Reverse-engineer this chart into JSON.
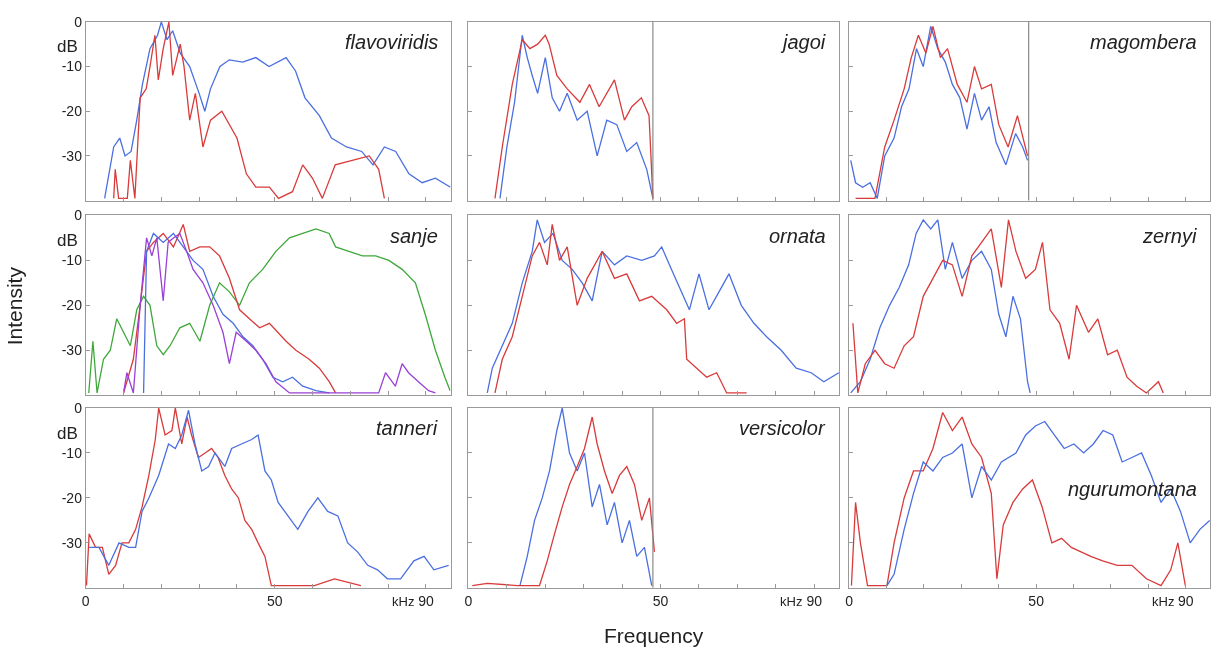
{
  "chart_data": [
    {
      "type": "line",
      "title": "flavoviridis",
      "ylabel": "dB",
      "xlim": [
        0,
        96.5
      ],
      "ylim": [
        -40,
        0
      ],
      "tick_labels": "y",
      "xticks": [
        0,
        {
          "value": 10,
          "label": null
        },
        {
          "value": 20,
          "label": null
        },
        {
          "value": 30,
          "label": null
        },
        {
          "value": 40,
          "label": null
        },
        50,
        {
          "value": 60,
          "label": null
        },
        {
          "value": 70,
          "label": null
        },
        {
          "value": 80,
          "label": null
        },
        90
      ],
      "yticks": [
        0,
        -10,
        -20,
        -30
      ],
      "series": [
        {
          "color": "#4a6fe0",
          "x": [
            5,
            7.4,
            9,
            10.4,
            12,
            13.5,
            15,
            17,
            19,
            20,
            21.5,
            23,
            25,
            27.5,
            30,
            31.5,
            33,
            35.5,
            38,
            41.5,
            45,
            48.5,
            53,
            55.5,
            58,
            61.8,
            65,
            69,
            73,
            76,
            79,
            82,
            85.5,
            89,
            92.5,
            96.5
          ],
          "values": [
            -39.5,
            -28,
            -26,
            -30,
            -29,
            -22,
            -14,
            -6,
            -3,
            0,
            -4,
            -2,
            -7,
            -10,
            -16,
            -20,
            -15,
            -10,
            -8.5,
            -9,
            -8,
            -10,
            -8,
            -11,
            -17,
            -21,
            -26,
            -28,
            -29,
            -32,
            -28,
            -29,
            -34,
            -36,
            -35,
            -37
          ]
        },
        {
          "color": "#d93a3a",
          "x": [
            7.4,
            7.8,
            8.7,
            11,
            11.8,
            13,
            14.4,
            16,
            17,
            18.3,
            19.2,
            20.5,
            22,
            23,
            25,
            26,
            27.5,
            29,
            31,
            33,
            36,
            40,
            42.5,
            45,
            48.6,
            51,
            54.7,
            57.4,
            60,
            62.6,
            66,
            70.5,
            75,
            77.5,
            79
          ],
          "values": [
            -39.5,
            -33,
            -39.5,
            -39.5,
            -31,
            -39.5,
            -17,
            -15,
            -10,
            -3,
            -13,
            -6,
            0,
            -12,
            -5,
            -10,
            -22,
            -16,
            -28,
            -22,
            -20,
            -26,
            -34,
            -37,
            -37,
            -39.5,
            -38,
            -32,
            -35,
            -39.5,
            -32,
            -31,
            -30,
            -33,
            -39.5
          ]
        }
      ]
    },
    {
      "type": "line",
      "title": "jagoi",
      "xlim": [
        0,
        96.5
      ],
      "ylim": [
        -40,
        0
      ],
      "tick_labels": false,
      "xticks": [
        0,
        {
          "value": 10,
          "label": null
        },
        {
          "value": 20,
          "label": null
        },
        {
          "value": 30,
          "label": null
        },
        {
          "value": 40,
          "label": null
        },
        50,
        {
          "value": 60,
          "label": null
        },
        {
          "value": 70,
          "label": null
        },
        {
          "value": 80,
          "label": null
        },
        90
      ],
      "yticks": [
        0,
        -10,
        -20,
        -30
      ],
      "ref_lines": [
        {
          "axis": "x",
          "value": 48,
          "color": "#8a8a8a"
        }
      ],
      "series": [
        {
          "color": "#4a6fe0",
          "x": [
            8.2,
            10,
            12,
            14,
            15.3,
            16.6,
            18,
            20,
            21.8,
            23.7,
            25.7,
            28.3,
            30.9,
            33.5,
            36,
            38.6,
            41.2,
            43.8,
            46.4,
            48
          ],
          "values": [
            -39.5,
            -28,
            -18,
            -3,
            -8,
            -12,
            -16,
            -8,
            -17,
            -20,
            -16,
            -22,
            -20,
            -30,
            -22,
            -23,
            -29,
            -27,
            -33,
            -39.5
          ]
        },
        {
          "color": "#d93a3a",
          "x": [
            6.9,
            8.8,
            11.4,
            14,
            16,
            18,
            20,
            21,
            23,
            25.7,
            29,
            31.5,
            34,
            38,
            40.6,
            42.5,
            45,
            47,
            48
          ],
          "values": [
            -39.5,
            -28,
            -14,
            -4,
            -6,
            -5,
            -3,
            -5,
            -12,
            -15,
            -18,
            -14,
            -19,
            -13,
            -22,
            -19,
            -17,
            -21,
            -39.5
          ]
        }
      ]
    },
    {
      "type": "line",
      "title": "magombera",
      "xlim": [
        0,
        96.5
      ],
      "ylim": [
        -40,
        0
      ],
      "tick_labels": false,
      "xticks": [
        0,
        {
          "value": 10,
          "label": null
        },
        {
          "value": 20,
          "label": null
        },
        {
          "value": 30,
          "label": null
        },
        {
          "value": 40,
          "label": null
        },
        50,
        {
          "value": 60,
          "label": null
        },
        {
          "value": 70,
          "label": null
        },
        {
          "value": 80,
          "label": null
        },
        90
      ],
      "yticks": [
        0,
        -10,
        -20,
        -30
      ],
      "ref_lines": [
        {
          "axis": "x",
          "value": 48,
          "color": "#8a8a8a"
        }
      ],
      "series": [
        {
          "color": "#4a6fe0",
          "x": [
            0.4,
            1.7,
            3.6,
            5.6,
            7.5,
            9.5,
            12,
            14,
            16,
            18,
            19.8,
            21.8,
            23.7,
            25.7,
            27.6,
            29.6,
            31.5,
            33.5,
            35.4,
            37.4,
            39.3,
            41.9,
            44.5,
            46.4,
            47.7
          ],
          "values": [
            -31,
            -36,
            -37,
            -36,
            -39.5,
            -30,
            -26,
            -19,
            -15,
            -6,
            -10,
            -1,
            -6,
            -9,
            -14,
            -17,
            -24,
            -16,
            -22,
            -19,
            -27,
            -32,
            -25,
            -28,
            -31
          ]
        },
        {
          "color": "#d93a3a",
          "x": [
            1.7,
            6.9,
            9.5,
            12,
            14.7,
            16.6,
            18.5,
            20.5,
            22.4,
            24.4,
            26.3,
            28.9,
            31.5,
            33.5,
            35.4,
            38,
            40,
            42.5,
            45,
            47.7
          ],
          "values": [
            -39.5,
            -39.5,
            -28,
            -22,
            -15,
            -8,
            -3,
            -7,
            -1,
            -8,
            -6,
            -14,
            -18,
            -10,
            -15,
            -14,
            -23,
            -28,
            -21,
            -30
          ]
        }
      ]
    },
    {
      "type": "line",
      "title": "sanje",
      "ylabel": "dB",
      "annotations": [
        "Intensity"
      ],
      "xlim": [
        0,
        96.5
      ],
      "ylim": [
        -40,
        0
      ],
      "tick_labels": "y",
      "xticks": [
        0,
        {
          "value": 10,
          "label": null
        },
        {
          "value": 20,
          "label": null
        },
        {
          "value": 30,
          "label": null
        },
        {
          "value": 40,
          "label": null
        },
        50,
        {
          "value": 60,
          "label": null
        },
        {
          "value": 70,
          "label": null
        },
        {
          "value": 80,
          "label": null
        },
        90
      ],
      "yticks": [
        0,
        -10,
        -20,
        -30
      ],
      "series": [
        {
          "color": "#3fa83a",
          "x": [
            0.8,
            1.9,
            3,
            4.7,
            6.5,
            8.2,
            10,
            11.8,
            13.5,
            15.3,
            17,
            18.8,
            20.5,
            22.3,
            24.9,
            27.5,
            30.2,
            32.8,
            35.4,
            38,
            40.7,
            43.3,
            46.8,
            50.3,
            53.9,
            57.4,
            60.9,
            64.4,
            66.1,
            69.6,
            73.2,
            76.7,
            80.2,
            83.7,
            87.2,
            89.8,
            92.5,
            95,
            96.4
          ],
          "values": [
            -39.5,
            -28,
            -39.5,
            -32,
            -30,
            -23,
            -26,
            -29,
            -21,
            -18,
            -20,
            -29,
            -31,
            -29,
            -25,
            -24,
            -28,
            -20,
            -15,
            -17,
            -20,
            -15,
            -12,
            -8,
            -5,
            -4,
            -3,
            -4,
            -7,
            -8,
            -9,
            -9,
            -10,
            -12,
            -15,
            -22,
            -30,
            -36,
            -39
          ]
        },
        {
          "color": "#d93a3a",
          "x": [
            10,
            12.6,
            14.4,
            16.1,
            17.9,
            20.5,
            23.2,
            25.8,
            27.5,
            30.2,
            32.8,
            35.4,
            38,
            40.7,
            43.3,
            46,
            48.6,
            53,
            55.6,
            59.1,
            61.8,
            64.4,
            66.1
          ],
          "values": [
            -39.5,
            -32,
            -20,
            -8,
            -6,
            -4,
            -7,
            -2,
            -8,
            -7,
            -7,
            -9,
            -14,
            -21,
            -23,
            -25,
            -24,
            -28,
            -30,
            -32,
            -34,
            -37,
            -39.5
          ]
        },
        {
          "color": "#4a6fe0",
          "x": [
            15.3,
            16.1,
            17.9,
            20.5,
            23.2,
            25.8,
            28.4,
            31,
            33.7,
            36.3,
            39,
            41.6,
            44.2,
            46.8,
            49.5,
            52.1,
            54.7,
            57.4,
            60.9,
            64.4
          ],
          "values": [
            -39.5,
            -8,
            -4,
            -6,
            -4,
            -7,
            -10,
            -12,
            -18,
            -22,
            -24,
            -27,
            -29,
            -32,
            -36,
            -37,
            -36,
            -38,
            -39,
            -39.5
          ]
        },
        {
          "color": "#9b3fd6",
          "x": [
            10,
            10.9,
            12.6,
            14.4,
            16.1,
            17.5,
            18.8,
            20.5,
            21.8,
            23.2,
            24.9,
            26.7,
            28.4,
            31,
            33.7,
            36.3,
            38,
            39.8,
            42.5,
            45,
            47.7,
            50.3,
            53.9,
            77.5,
            79.3,
            81.9,
            83.7,
            85.4,
            88,
            90.7,
            92.5
          ],
          "values": [
            -39.5,
            -35,
            -39.5,
            -20,
            -5,
            -9,
            -5,
            -19,
            -6,
            -5,
            -4,
            -8,
            -12,
            -15,
            -20,
            -26,
            -33,
            -26,
            -28,
            -30,
            -33,
            -37,
            -39.5,
            -39.5,
            -35,
            -38,
            -33,
            -35,
            -37,
            -39,
            -39.5
          ]
        }
      ]
    },
    {
      "type": "line",
      "title": "ornata",
      "xlim": [
        0,
        96.5
      ],
      "ylim": [
        -40,
        0
      ],
      "tick_labels": false,
      "xticks": [
        0,
        {
          "value": 10,
          "label": null
        },
        {
          "value": 20,
          "label": null
        },
        {
          "value": 30,
          "label": null
        },
        {
          "value": 40,
          "label": null
        },
        50,
        {
          "value": 60,
          "label": null
        },
        {
          "value": 70,
          "label": null
        },
        {
          "value": 80,
          "label": null
        },
        90
      ],
      "yticks": [
        0,
        -10,
        -20,
        -30
      ],
      "series": [
        {
          "color": "#4a6fe0",
          "x": [
            4.9,
            6.2,
            8.8,
            11.4,
            14,
            16.6,
            17.9,
            19.8,
            22,
            24.4,
            27,
            29.6,
            32.2,
            34.8,
            38,
            41.2,
            45.1,
            48.4,
            50.3,
            52.3,
            54.9,
            57.5,
            60,
            62.6,
            65.2,
            67.8,
            71,
            74.3,
            77.6,
            81.4,
            85.3,
            89.2,
            92.5,
            96.4
          ],
          "values": [
            -39.5,
            -34,
            -29,
            -24,
            -15,
            -8,
            -1,
            -6,
            -4,
            -10,
            -12,
            -15,
            -19,
            -8,
            -11,
            -9,
            -10,
            -9,
            -7,
            -11,
            -16,
            -21,
            -13,
            -21,
            -17,
            -13,
            -20,
            -24,
            -27,
            -30,
            -34,
            -35,
            -37,
            -35
          ]
        },
        {
          "color": "#d93a3a",
          "x": [
            6.9,
            8.8,
            11.4,
            14,
            16.6,
            18.5,
            20.5,
            21.8,
            23.7,
            25.7,
            28.3,
            30.9,
            34.8,
            38,
            41.2,
            44.5,
            47.7,
            51.6,
            54.2,
            56.2,
            56.8,
            59.4,
            62,
            64.6,
            67.2,
            72.4
          ],
          "values": [
            -39.5,
            -32,
            -27,
            -18,
            -9,
            -6,
            -11,
            -2,
            -10,
            -7,
            -20,
            -14,
            -8,
            -14,
            -13,
            -19,
            -18,
            -21,
            -24,
            -23,
            -32,
            -34,
            -36,
            -35,
            -39.5,
            -39.5
          ]
        }
      ]
    },
    {
      "type": "line",
      "title": "zernyi",
      "xlim": [
        0,
        96.5
      ],
      "ylim": [
        -40,
        0
      ],
      "tick_labels": false,
      "xticks": [
        0,
        {
          "value": 10,
          "label": null
        },
        {
          "value": 20,
          "label": null
        },
        {
          "value": 30,
          "label": null
        },
        {
          "value": 40,
          "label": null
        },
        50,
        {
          "value": 60,
          "label": null
        },
        {
          "value": 70,
          "label": null
        },
        {
          "value": 80,
          "label": null
        },
        90
      ],
      "yticks": [
        0,
        -10,
        -20,
        -30
      ],
      "series": [
        {
          "color": "#4a6fe0",
          "x": [
            0.4,
            3,
            5.6,
            8.2,
            10.8,
            13.4,
            15.9,
            17.9,
            19.8,
            21.8,
            23.7,
            25.7,
            27.6,
            30.2,
            32.8,
            35.4,
            38,
            40,
            41.9,
            43.8,
            45.8,
            47.7,
            48.4
          ],
          "values": [
            -39.5,
            -37,
            -32,
            -25,
            -20,
            -16,
            -11,
            -4,
            -1,
            -3,
            -1,
            -12,
            -6,
            -14,
            -10,
            -8,
            -12,
            -22,
            -27,
            -18,
            -23,
            -37,
            -39.5
          ]
        },
        {
          "color": "#d93a3a",
          "x": [
            1,
            2.3,
            4.3,
            6.9,
            9.5,
            12,
            14.7,
            17.2,
            19.8,
            22.4,
            25,
            27.6,
            30.2,
            32.8,
            35.4,
            38,
            40.7,
            42.6,
            44.6,
            47.2,
            49.8,
            51.7,
            53.7,
            56.3,
            58.8,
            60.8,
            64,
            66.5,
            69.1,
            71.7,
            74.3,
            76.9,
            79.5,
            82.7,
            84
          ],
          "values": [
            -24,
            -39.5,
            -33,
            -30,
            -33,
            -34,
            -29,
            -27,
            -18,
            -14,
            -10,
            -11,
            -18,
            -9,
            -6,
            -3,
            -16,
            -1,
            -8,
            -14,
            -12,
            -6,
            -21,
            -24,
            -32,
            -20,
            -26,
            -23,
            -31,
            -30,
            -36,
            -38,
            -39.5,
            -37,
            -39.5
          ]
        }
      ]
    },
    {
      "type": "line",
      "title": "tanneri",
      "ylabel": "dB",
      "annotations": [
        "kHz"
      ],
      "xlim": [
        0,
        96.5
      ],
      "ylim": [
        -40,
        0
      ],
      "xticks": [
        0,
        {
          "value": 10,
          "label": null
        },
        {
          "value": 20,
          "label": null
        },
        {
          "value": 30,
          "label": null
        },
        {
          "value": 40,
          "label": null
        },
        50,
        {
          "value": 60,
          "label": null
        },
        {
          "value": 70,
          "label": null
        },
        {
          "value": 80,
          "label": null
        },
        90
      ],
      "yticks": [
        0,
        -10,
        -20,
        -30
      ],
      "series": [
        {
          "color": "#d93a3a",
          "x": [
            0.2,
            0.9,
            2.6,
            4.4,
            6.1,
            7.9,
            9.6,
            11.4,
            13.2,
            14.9,
            16.7,
            18.4,
            19.3,
            21,
            22.8,
            23.7,
            25.4,
            26.8,
            28,
            29.8,
            31.6,
            33.3,
            35,
            36.8,
            38.6,
            40.4,
            42.1,
            43.9,
            45.6,
            47.4,
            49.1,
            60.5,
            65.8,
            72.8
          ],
          "values": [
            -39.5,
            -28,
            -31,
            -31,
            -37,
            -35,
            -30,
            -30,
            -27,
            -22,
            -15,
            -7,
            0,
            -6,
            -5,
            0,
            -8,
            -2,
            -6,
            -11,
            -10,
            -9,
            -11,
            -15,
            -18,
            -20,
            -25,
            -27,
            -30,
            -33,
            -39.5,
            -39.5,
            -38,
            -39.5
          ]
        },
        {
          "color": "#4a6fe0",
          "x": [
            0.9,
            3.5,
            6.1,
            8.8,
            11.4,
            13.2,
            14.9,
            16.7,
            19.3,
            21.9,
            23.7,
            25.4,
            27.2,
            28.9,
            30.7,
            32.5,
            34.2,
            36.8,
            38.6,
            41.2,
            43.9,
            45.6,
            47.4,
            49.1,
            50.9,
            53.5,
            56.1,
            58.8,
            61.4,
            64,
            66.7,
            69.3,
            71.9,
            74.6,
            77.2,
            79.8,
            83.3,
            86.8,
            89.5,
            92.1,
            96
          ],
          "values": [
            -31,
            -31,
            -35,
            -30,
            -31,
            -31,
            -23,
            -20,
            -15,
            -8,
            -9,
            -6,
            -0.5,
            -8,
            -14,
            -13,
            -10,
            -13,
            -9,
            -8,
            -7,
            -6,
            -14,
            -16,
            -21,
            -24,
            -27,
            -23,
            -20,
            -23,
            -24,
            -30,
            -32,
            -35,
            -36,
            -38,
            -38,
            -34,
            -33,
            -36,
            -35
          ]
        }
      ]
    },
    {
      "type": "line",
      "title": "versicolor",
      "xlabel": "Frequency",
      "annotations": [
        "kHz"
      ],
      "xlim": [
        0,
        96.5
      ],
      "ylim": [
        -40,
        0
      ],
      "tick_labels": "x",
      "xticks": [
        0,
        {
          "value": 10,
          "label": null
        },
        {
          "value": 20,
          "label": null
        },
        {
          "value": 30,
          "label": null
        },
        {
          "value": 40,
          "label": null
        },
        50,
        {
          "value": 60,
          "label": null
        },
        {
          "value": 70,
          "label": null
        },
        {
          "value": 80,
          "label": null
        },
        90
      ],
      "yticks": [
        0,
        -10,
        -20,
        -30
      ],
      "ref_lines": [
        {
          "axis": "x",
          "value": 48,
          "color": "#8a8a8a"
        }
      ],
      "series": [
        {
          "color": "#4a6fe0",
          "x": [
            13.4,
            15.3,
            17.2,
            19.2,
            21.1,
            23,
            24.4,
            26.3,
            28.3,
            30.2,
            32.2,
            34.1,
            36.1,
            38,
            40,
            41.9,
            43.8,
            45.8,
            47.7
          ],
          "values": [
            -39.5,
            -33,
            -25,
            -20,
            -14,
            -5,
            0,
            -10,
            -14,
            -10,
            -22,
            -17,
            -26,
            -21,
            -30,
            -25,
            -33,
            -31,
            -39.5
          ]
        },
        {
          "color": "#d93a3a",
          "x": [
            1,
            4.9,
            12.7,
            18.5,
            20.5,
            22.4,
            24.4,
            26.3,
            28.3,
            30.2,
            32.2,
            33.5,
            35.4,
            37.4,
            39.3,
            41.2,
            43.2,
            45.1,
            47.1,
            48.4
          ],
          "values": [
            -39.5,
            -39,
            -39.5,
            -39.5,
            -34,
            -28,
            -22,
            -17,
            -13,
            -9,
            -2,
            -8,
            -14,
            -19,
            -15,
            -13,
            -17,
            -25,
            -20,
            -32
          ]
        }
      ]
    },
    {
      "type": "line",
      "title": "ngurumontana",
      "annotations": [
        "kHz"
      ],
      "xlim": [
        0,
        96.5
      ],
      "ylim": [
        -40,
        0
      ],
      "tick_labels": "x",
      "xticks": [
        0,
        {
          "value": 10,
          "label": null
        },
        {
          "value": 20,
          "label": null
        },
        {
          "value": 30,
          "label": null
        },
        {
          "value": 40,
          "label": null
        },
        50,
        {
          "value": 60,
          "label": null
        },
        {
          "value": 70,
          "label": null
        },
        {
          "value": 80,
          "label": null
        },
        90
      ],
      "yticks": [
        0,
        -10,
        -20,
        -30
      ],
      "series": [
        {
          "color": "#d93a3a",
          "x": [
            0.6,
            1.7,
            3,
            4.9,
            10.1,
            12,
            14.7,
            17.2,
            19.8,
            22.4,
            25,
            27.6,
            30.2,
            32.8,
            35.4,
            38,
            39.5,
            41.2,
            43.8,
            46.4,
            49,
            51.6,
            54.2,
            56.8,
            59.4,
            62,
            64.6,
            67.8,
            71.7,
            75.6,
            79.5,
            83.4,
            86,
            87.9,
            89.9
          ],
          "values": [
            -39.5,
            -21,
            -30,
            -39.5,
            -39.5,
            -30,
            -20,
            -14,
            -14,
            -9,
            -1,
            -5,
            -2,
            -8,
            -11,
            -19,
            -38,
            -26,
            -21,
            -18,
            -16,
            -22,
            -30,
            -29,
            -31,
            -32,
            -33,
            -34,
            -35,
            -35,
            -38,
            -39.5,
            -36,
            -30,
            -39.5
          ]
        },
        {
          "color": "#4a6fe0",
          "x": [
            10.1,
            12,
            14.7,
            17.2,
            19.8,
            22.4,
            25,
            27.6,
            30.2,
            32.8,
            35.4,
            38,
            40.7,
            44.6,
            47.2,
            49.8,
            52.3,
            54.9,
            57.5,
            60.1,
            62.7,
            65.3,
            67.9,
            70.5,
            73,
            75.6,
            78.2,
            80.8,
            83.4,
            86,
            88.6,
            91.2,
            93.8,
            96.4
          ],
          "values": [
            -39.5,
            -37,
            -27,
            -19,
            -12,
            -14,
            -11,
            -10,
            -8,
            -20,
            -13,
            -16,
            -12,
            -10,
            -6,
            -4,
            -3,
            -6,
            -9,
            -8,
            -10,
            -8,
            -5,
            -6,
            -12,
            -11,
            -10,
            -15,
            -21,
            -18,
            -23,
            -30,
            -27,
            -25
          ]
        }
      ]
    }
  ]
}
